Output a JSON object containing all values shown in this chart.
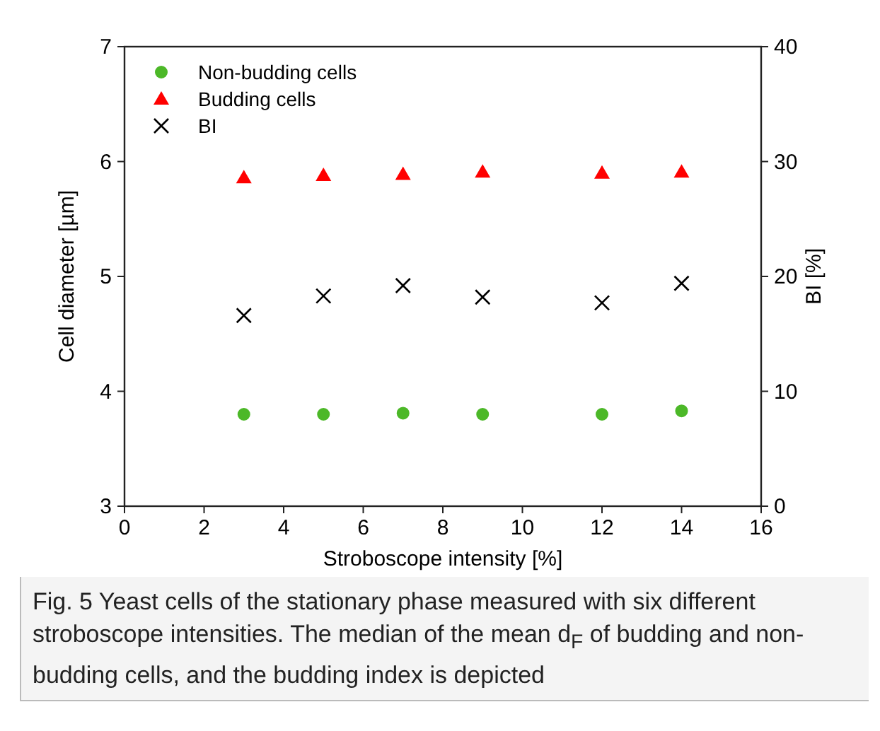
{
  "chart_data": {
    "type": "scatter",
    "xlabel": "Stroboscope intensity [%]",
    "ylabel": "Cell diameter [µm]",
    "y2label": "BI [%]",
    "x": [
      3,
      5,
      7,
      9,
      12,
      14
    ],
    "xlim": [
      0,
      16
    ],
    "xticks": [
      0,
      2,
      4,
      6,
      8,
      10,
      12,
      14,
      16
    ],
    "ylim": [
      3,
      7
    ],
    "yticks": [
      3,
      4,
      5,
      6,
      7
    ],
    "y2lim": [
      0,
      40
    ],
    "y2ticks": [
      0,
      10,
      20,
      30,
      40
    ],
    "legend": "top left",
    "grid": false,
    "series": [
      {
        "name": "Non-budding cells",
        "color": "#4cb828",
        "marker": "circle",
        "values": [
          3.8,
          3.8,
          3.81,
          3.8,
          3.8,
          3.83
        ]
      },
      {
        "name": "Budding cells",
        "color": "#ff0000",
        "marker": "triangle",
        "values": [
          5.86,
          5.88,
          5.89,
          5.91,
          5.9,
          5.91
        ]
      },
      {
        "name": "BI",
        "color": "#000000",
        "marker": "cross",
        "axis": "y2",
        "values": [
          16.6,
          18.3,
          19.2,
          18.2,
          17.7,
          19.4
        ]
      }
    ],
    "annotations": [
      "Fig. 5  Yeast cells of the stationary phase measured with six different stroboscope intensities. The median of the mean d$_{F}$ of budding and non-budding cells, and the budding index is depicted"
    ]
  }
}
